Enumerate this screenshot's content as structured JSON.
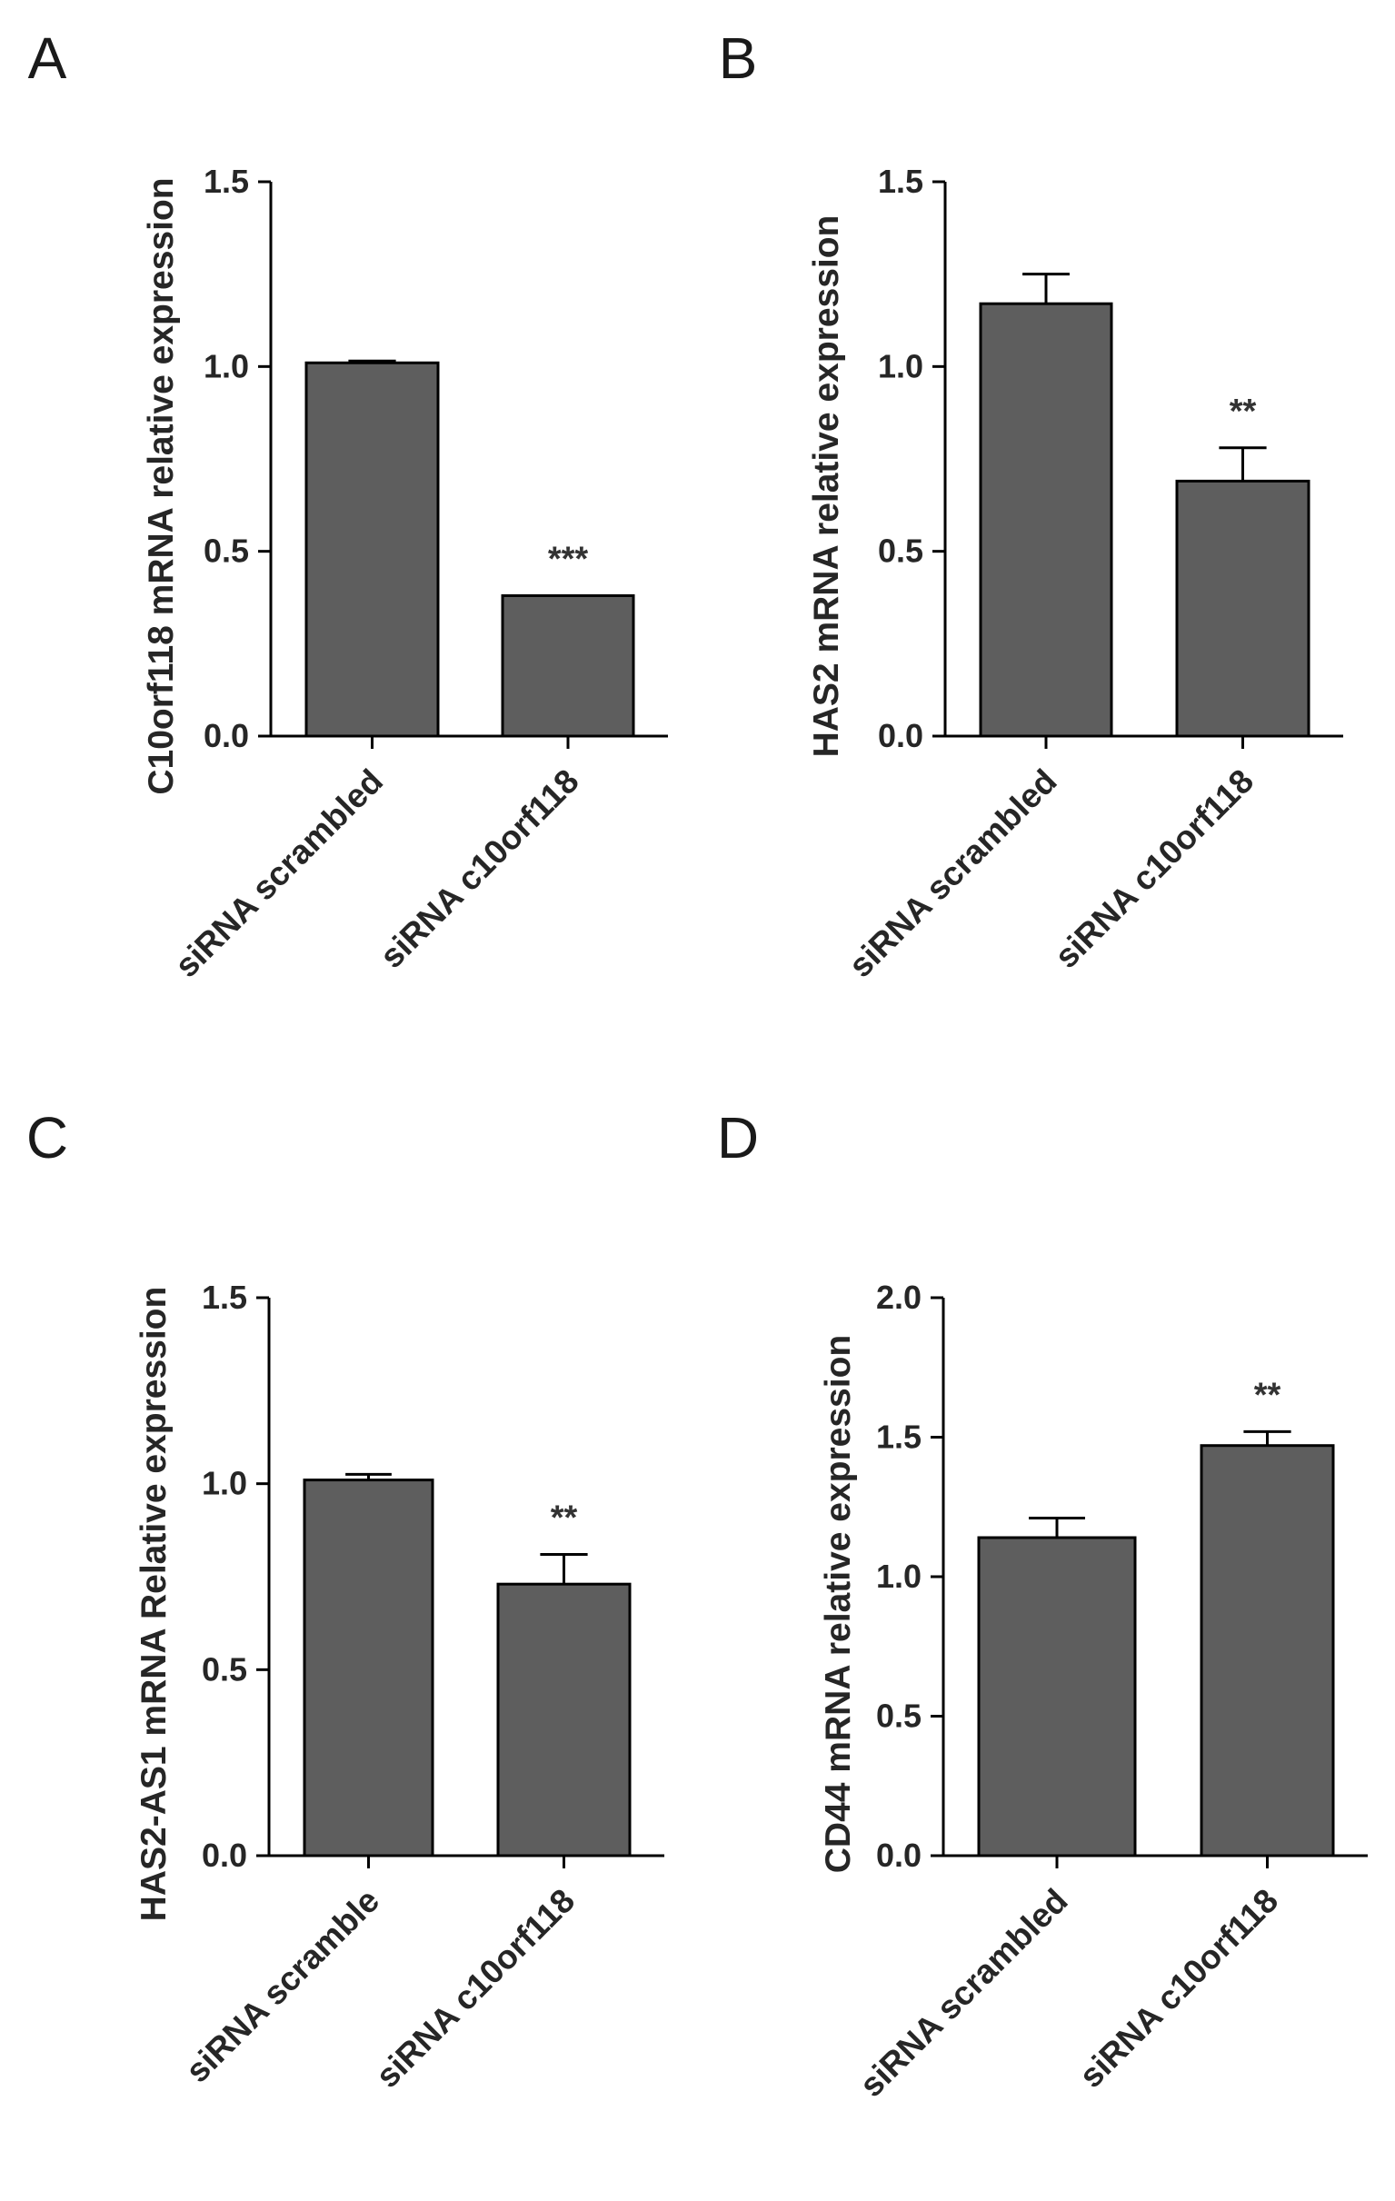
{
  "chart_data": [
    {
      "panel": "A",
      "type": "bar",
      "ylabel": "C10orf118 mRNA relative expression",
      "ylim": [
        0,
        1.5
      ],
      "yticks": [
        0.0,
        0.5,
        1.0,
        1.5
      ],
      "ytick_labels": [
        "0.0",
        "0.5",
        "1.0",
        "1.5"
      ],
      "categories": [
        "siRNA scrambled",
        "siRNA c10orf118"
      ],
      "values": [
        1.01,
        0.38
      ],
      "errors": [
        0.005,
        0.0
      ],
      "significance": [
        "",
        "***"
      ]
    },
    {
      "panel": "B",
      "type": "bar",
      "ylabel": "HAS2 mRNA relative expression",
      "ylim": [
        0,
        1.5
      ],
      "yticks": [
        0.0,
        0.5,
        1.0,
        1.5
      ],
      "ytick_labels": [
        "0.0",
        "0.5",
        "1.0",
        "1.5"
      ],
      "categories": [
        "siRNA scrambled",
        "siRNA c10orf118"
      ],
      "values": [
        1.17,
        0.69
      ],
      "errors": [
        0.08,
        0.09
      ],
      "significance": [
        "",
        "**"
      ]
    },
    {
      "panel": "C",
      "type": "bar",
      "ylabel": "HAS2-AS1 mRNA Relative expression",
      "ylim": [
        0,
        1.5
      ],
      "yticks": [
        0.0,
        0.5,
        1.0,
        1.5
      ],
      "ytick_labels": [
        "0.0",
        "0.5",
        "1.0",
        "1.5"
      ],
      "categories": [
        "siRNA scramble",
        "siRNA c10orf118"
      ],
      "values": [
        1.01,
        0.73
      ],
      "errors": [
        0.015,
        0.08
      ],
      "significance": [
        "",
        "**"
      ]
    },
    {
      "panel": "D",
      "type": "bar",
      "ylabel": "CD44 mRNA relative expression",
      "ylim": [
        0,
        2.0
      ],
      "yticks": [
        0.0,
        0.5,
        1.0,
        1.5,
        2.0
      ],
      "ytick_labels": [
        "0.0",
        "0.5",
        "1.0",
        "1.5",
        "2.0"
      ],
      "categories": [
        "siRNA scrambled",
        "siRNA c10orf118"
      ],
      "values": [
        1.14,
        1.47
      ],
      "errors": [
        0.07,
        0.05
      ],
      "significance": [
        "",
        "**"
      ]
    }
  ],
  "colors": {
    "bar_fill": "#5e5e5e",
    "axis": "#000000",
    "text": "#262626"
  }
}
